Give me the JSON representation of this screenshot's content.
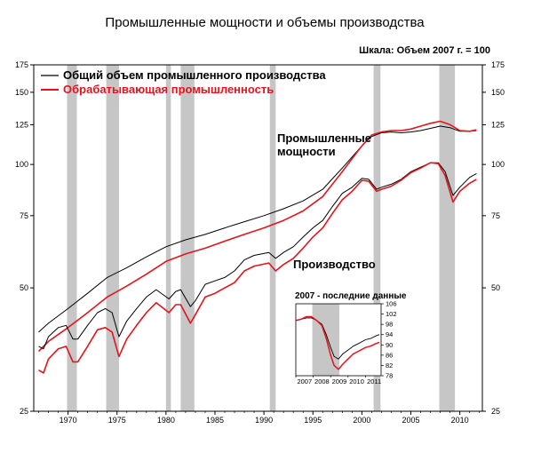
{
  "chart_data": {
    "type": "line",
    "title": "Промышленные мощности и объемы производства",
    "scale_note": "Шкала: Объем 2007 г. = 100",
    "y_scale": "log",
    "ylim": [
      25,
      175
    ],
    "yticks": [
      25,
      50,
      75,
      100,
      125,
      150,
      175
    ],
    "xlim": [
      1966.5,
      2012.3
    ],
    "xticks": [
      1970,
      1975,
      1980,
      1985,
      1990,
      1995,
      2000,
      2005,
      2010
    ],
    "legend": [
      "Общий объем промышленного производства",
      "Обрабатывающая промышленность"
    ],
    "legend_position": "top-left",
    "annotations": [
      {
        "lines": [
          "Промышленные",
          "мощности"
        ]
      },
      {
        "lines": [
          "Производство"
        ]
      }
    ],
    "recessions": [
      [
        1969.9,
        1970.9
      ],
      [
        1973.9,
        1975.2
      ],
      [
        1980.0,
        1980.5
      ],
      [
        1981.5,
        1982.9
      ],
      [
        1990.6,
        1991.2
      ],
      [
        2001.2,
        2001.9
      ],
      [
        2007.9,
        2009.5
      ]
    ],
    "series": [
      {
        "name": "Общий объем промышленного производства",
        "kind": "capacity",
        "color": "#000000",
        "x": [
          1967,
          1968,
          1970,
          1972,
          1974,
          1976,
          1978,
          1980,
          1982,
          1984,
          1986,
          1988,
          1990,
          1992,
          1994,
          1996,
          1998,
          2000,
          2001,
          2002,
          2003,
          2004,
          2005,
          2006,
          2007,
          2008,
          2009,
          2010,
          2011,
          2011.7
        ],
        "values": [
          39,
          41,
          44.5,
          48.5,
          53,
          56,
          59.5,
          63,
          65.5,
          67.5,
          70,
          72.5,
          75,
          78,
          81.5,
          87,
          98,
          111,
          117,
          119.5,
          120,
          119.5,
          120,
          121,
          122.5,
          124,
          123,
          120.5,
          120.5,
          121
        ]
      },
      {
        "name": "Обрабатывающая промышленность",
        "kind": "capacity",
        "color": "#e3141c",
        "x": [
          1967,
          1968,
          1970,
          1972,
          1974,
          1976,
          1978,
          1980,
          1982,
          1984,
          1986,
          1988,
          1990,
          1992,
          1994,
          1996,
          1998,
          2000,
          2001,
          2002,
          2003,
          2004,
          2005,
          2006,
          2007,
          2008,
          2009,
          2010,
          2011,
          2011.7
        ],
        "values": [
          35,
          37,
          40,
          43.5,
          47.5,
          50.5,
          54,
          58,
          60.5,
          62.5,
          65,
          67.5,
          70,
          73,
          77,
          83.5,
          96,
          111,
          118,
          120,
          121,
          121,
          122,
          124,
          126,
          127.5,
          125,
          121,
          120.5,
          121.5
        ]
      },
      {
        "name": "Общий объем промышленного производства",
        "kind": "production",
        "color": "#000000",
        "x": [
          1967,
          1967.5,
          1968,
          1969,
          1969.8,
          1970.5,
          1971,
          1972,
          1973,
          1973.8,
          1974.5,
          1975.2,
          1976,
          1977,
          1978,
          1979,
          1980.3,
          1981,
          1981.5,
          1982.5,
          1983,
          1984,
          1985,
          1986,
          1987,
          1988,
          1989,
          1990.5,
          1991.2,
          1992,
          1993,
          1994,
          1995,
          1996,
          1997,
          1998,
          1999,
          2000,
          2000.7,
          2001.5,
          2002,
          2003,
          2004,
          2005,
          2006,
          2007,
          2007.8,
          2008.5,
          2009.3,
          2010,
          2011,
          2011.7
        ],
        "values": [
          36,
          35.5,
          38,
          40,
          40.5,
          37.5,
          37.5,
          40.5,
          43.5,
          44.5,
          43.5,
          38,
          41.5,
          44.5,
          47.5,
          49.5,
          47,
          49,
          49.5,
          45,
          46.5,
          51,
          52,
          53,
          55,
          58.5,
          60,
          61,
          59,
          61,
          63,
          66.5,
          70,
          73,
          79,
          85,
          88,
          92.5,
          92,
          87,
          88,
          89.5,
          92,
          96,
          98.5,
          101,
          101,
          96,
          84,
          88,
          93,
          95
        ]
      },
      {
        "name": "Обрабатывающая промышленность",
        "kind": "production",
        "color": "#e3141c",
        "x": [
          1967,
          1967.5,
          1968,
          1969,
          1969.8,
          1970.5,
          1971,
          1972,
          1973,
          1973.8,
          1974.5,
          1975.2,
          1976,
          1977,
          1978,
          1979,
          1980.3,
          1981,
          1981.5,
          1982.5,
          1983,
          1984,
          1985,
          1986,
          1987,
          1988,
          1989,
          1990.5,
          1991.2,
          1992,
          1993,
          1994,
          1995,
          1996,
          1997,
          1998,
          1999,
          2000,
          2000.7,
          2001.5,
          2002,
          2003,
          2004,
          2005,
          2006,
          2007,
          2007.8,
          2008.5,
          2009.3,
          2010,
          2011,
          2011.7
        ],
        "values": [
          31.5,
          31,
          33.5,
          35.5,
          36,
          33,
          33,
          36,
          39.5,
          40,
          39,
          34,
          37.5,
          40.5,
          43.5,
          46,
          43.5,
          45.5,
          45.5,
          41,
          43,
          47.5,
          48.5,
          50,
          51.5,
          55,
          56.5,
          57.5,
          55,
          57,
          59,
          62.5,
          66.5,
          70,
          76,
          82,
          86,
          91.5,
          91,
          86,
          87,
          88.5,
          91.5,
          95.5,
          98,
          101,
          100.5,
          94,
          81,
          86,
          90,
          92
        ]
      }
    ],
    "inset": {
      "title": "2007 - последние данные",
      "yticks": [
        78,
        82,
        86,
        90,
        94,
        98,
        102,
        106
      ],
      "ylim": [
        78,
        106
      ],
      "xticks": [
        2007,
        2008,
        2009,
        2010,
        2011
      ],
      "xlim": [
        2007,
        2011.9
      ],
      "recession": [
        2007.95,
        2009.5
      ],
      "series": [
        {
          "name": "Общий объем промышленного производства",
          "color": "#000000",
          "x": [
            2007,
            2007.3,
            2007.6,
            2007.9,
            2008.2,
            2008.5,
            2008.75,
            2009,
            2009.2,
            2009.45,
            2009.7,
            2010,
            2010.3,
            2010.6,
            2011,
            2011.3,
            2011.6,
            2011.8
          ],
          "values": [
            99.5,
            100,
            100.5,
            100.5,
            99.5,
            98,
            94,
            89,
            85.5,
            84.5,
            86.5,
            88,
            89.5,
            90.5,
            92,
            92.5,
            93.5,
            94
          ]
        },
        {
          "name": "Обрабатывающая промышленность",
          "color": "#e3141c",
          "x": [
            2007,
            2007.3,
            2007.6,
            2007.9,
            2008.2,
            2008.5,
            2008.75,
            2009,
            2009.2,
            2009.45,
            2009.7,
            2010,
            2010.3,
            2010.6,
            2011,
            2011.3,
            2011.6,
            2011.8
          ],
          "values": [
            99.5,
            100,
            101,
            101,
            99.5,
            97.5,
            92.5,
            86,
            82,
            80.5,
            82.5,
            84.5,
            86.5,
            87.5,
            89,
            89.5,
            90.5,
            91
          ]
        }
      ]
    }
  }
}
